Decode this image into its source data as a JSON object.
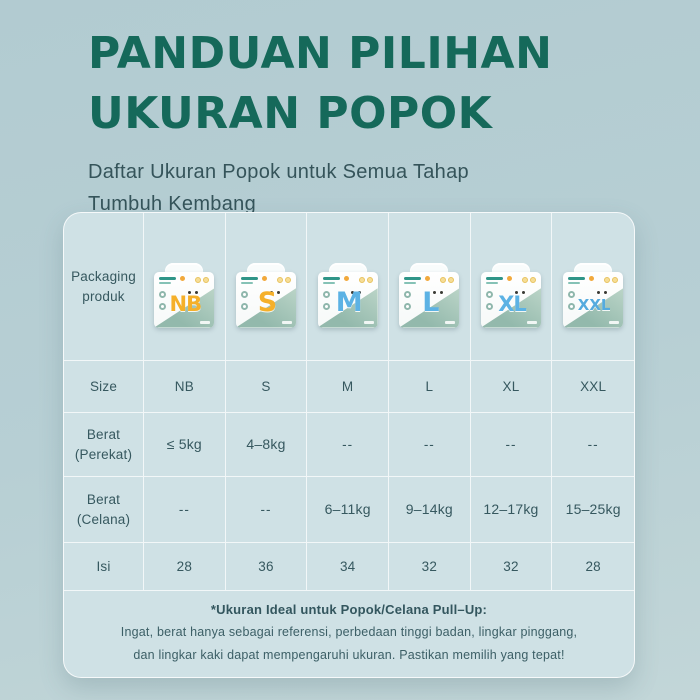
{
  "header": {
    "title_line1": "PANDUAN PILIHAN",
    "title_line2": "UKURAN POPOK",
    "subtitle": "Daftar Ukuran Popok untuk Semua Tahap\nTumbuh Kembang"
  },
  "table": {
    "labels": {
      "packaging": "Packaging\nproduk",
      "size": "Size",
      "berat_perekat": "Berat\n(Perekat)",
      "berat_celana": "Berat\n(Celana)",
      "isi": "Isi"
    },
    "columns": [
      {
        "size": "NB",
        "package_letter": "NB",
        "letter_color": "#f5b02a",
        "berat_perekat": "≤ 5kg",
        "berat_celana": "--",
        "isi": "28"
      },
      {
        "size": "S",
        "package_letter": "S",
        "letter_color": "#f5b02a",
        "berat_perekat": "4–8kg",
        "berat_celana": "--",
        "isi": "36"
      },
      {
        "size": "M",
        "package_letter": "M",
        "letter_color": "#5cb2e4",
        "berat_perekat": "--",
        "berat_celana": "6–11kg",
        "isi": "34"
      },
      {
        "size": "L",
        "package_letter": "L",
        "letter_color": "#5cb2e4",
        "berat_perekat": "--",
        "berat_celana": "9–14kg",
        "isi": "32"
      },
      {
        "size": "XL",
        "package_letter": "XL",
        "letter_color": "#5cb2e4",
        "berat_perekat": "--",
        "berat_celana": "12–17kg",
        "isi": "32"
      },
      {
        "size": "XXL",
        "package_letter": "XXL",
        "letter_color": "#55abde",
        "berat_perekat": "--",
        "berat_celana": "15–25kg",
        "isi": "28"
      }
    ]
  },
  "footnote": {
    "line1": "*Ukuran Ideal untuk Popok/Celana Pull–Up:",
    "line2": "Ingat, berat hanya sebagai referensi, perbedaan tinggi badan, lingkar pinggang,",
    "line3": "dan lingkar kaki dapat mempengaruhi ukuran. Pastikan memilih yang tepat!"
  },
  "colors": {
    "title": "#15695a",
    "card_background": "#cfe1e5",
    "page_background": "#b2cbd1",
    "accent_orange": "#f5b02a",
    "accent_blue": "#5cb2e4",
    "package_wedge": "#93b9ac"
  }
}
